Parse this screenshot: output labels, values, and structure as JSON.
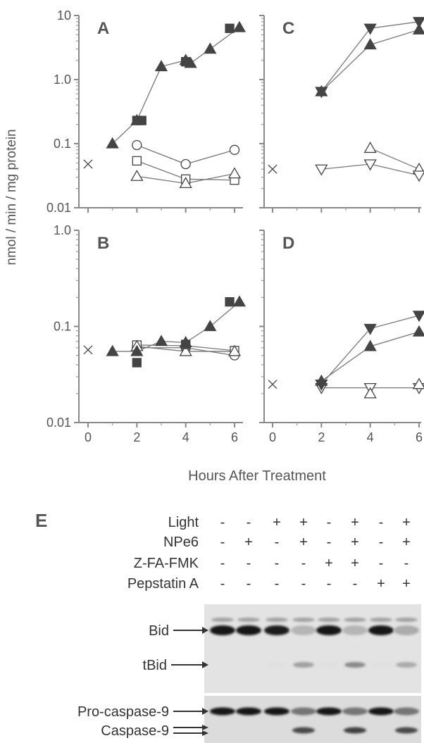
{
  "figure": {
    "y_axis_label": "nmol / min / mg protein",
    "x_axis_label": "Hours After Treatment",
    "x_ticks": [
      "0",
      "2",
      "4",
      "6"
    ],
    "top_y_ticks": [
      "10",
      "1.0",
      "0.1",
      "0.01"
    ],
    "bottom_y_ticks": [
      "1.0",
      "0.1",
      "0.01"
    ],
    "panel_e_label": "E"
  },
  "chart_data": [
    {
      "type": "scatter",
      "panel": "A",
      "yscale": "log",
      "xlim": [
        0,
        6.5
      ],
      "ylim": [
        0.01,
        10
      ],
      "series": [
        {
          "marker": "filled-triangle",
          "x": [
            1,
            2,
            3,
            4,
            4.2,
            5,
            6.2
          ],
          "y": [
            0.1,
            0.23,
            1.6,
            2.0,
            1.8,
            3.0,
            6.5
          ],
          "connected": true
        },
        {
          "marker": "filled-square",
          "x": [
            2,
            2.2,
            4,
            5.8
          ],
          "y": [
            0.23,
            0.23,
            1.9,
            6.3
          ],
          "connected": false
        },
        {
          "marker": "open-circle",
          "x": [
            2,
            4,
            6
          ],
          "y": [
            0.095,
            0.048,
            0.08
          ],
          "connected": true
        },
        {
          "marker": "open-square",
          "x": [
            2,
            4,
            6
          ],
          "y": [
            0.054,
            0.028,
            0.027
          ],
          "connected": true
        },
        {
          "marker": "open-triangle",
          "x": [
            2,
            4,
            6
          ],
          "y": [
            0.031,
            0.024,
            0.034
          ],
          "connected": true
        },
        {
          "marker": "x",
          "x": [
            0
          ],
          "y": [
            0.048
          ],
          "connected": false
        }
      ]
    },
    {
      "type": "scatter",
      "panel": "B",
      "yscale": "log",
      "xlim": [
        0,
        6.5
      ],
      "ylim": [
        0.01,
        1.0
      ],
      "series": [
        {
          "marker": "filled-triangle",
          "x": [
            1,
            2,
            3,
            4,
            5,
            6.2
          ],
          "y": [
            0.055,
            0.055,
            0.07,
            0.068,
            0.1,
            0.18
          ],
          "connected": true
        },
        {
          "marker": "filled-square",
          "x": [
            2,
            4,
            5.8
          ],
          "y": [
            0.042,
            0.065,
            0.18
          ],
          "connected": false
        },
        {
          "marker": "open-circle",
          "x": [
            2,
            4,
            6
          ],
          "y": [
            0.06,
            0.06,
            0.05
          ],
          "connected": true
        },
        {
          "marker": "open-square",
          "x": [
            2,
            4,
            6
          ],
          "y": [
            0.064,
            0.063,
            0.056
          ],
          "connected": true
        },
        {
          "marker": "open-triangle",
          "x": [
            2,
            4,
            6
          ],
          "y": [
            0.062,
            0.055,
            0.055
          ],
          "connected": true
        },
        {
          "marker": "x",
          "x": [
            0
          ],
          "y": [
            0.057
          ],
          "connected": false
        }
      ]
    },
    {
      "type": "scatter",
      "panel": "C",
      "yscale": "log",
      "xlim": [
        0,
        6.5
      ],
      "ylim": [
        0.01,
        10
      ],
      "series": [
        {
          "marker": "filled-inverted-triangle",
          "x": [
            2,
            4,
            6
          ],
          "y": [
            0.65,
            6.3,
            8.0
          ],
          "connected": true
        },
        {
          "marker": "filled-triangle",
          "x": [
            2,
            4,
            6
          ],
          "y": [
            0.65,
            3.5,
            6.0
          ],
          "connected": true
        },
        {
          "marker": "open-triangle",
          "x": [
            4,
            6
          ],
          "y": [
            0.085,
            0.04
          ],
          "connected": true
        },
        {
          "marker": "open-inverted-triangle",
          "x": [
            2,
            4,
            6
          ],
          "y": [
            0.04,
            0.048,
            0.032
          ],
          "connected": true
        },
        {
          "marker": "x",
          "x": [
            0
          ],
          "y": [
            0.04
          ],
          "connected": false
        }
      ]
    },
    {
      "type": "scatter",
      "panel": "D",
      "yscale": "log",
      "xlim": [
        0,
        6.5
      ],
      "ylim": [
        0.01,
        1.0
      ],
      "series": [
        {
          "marker": "filled-inverted-triangle",
          "x": [
            2,
            4,
            6
          ],
          "y": [
            0.025,
            0.095,
            0.13
          ],
          "connected": true
        },
        {
          "marker": "filled-triangle",
          "x": [
            2,
            4,
            6
          ],
          "y": [
            0.027,
            0.062,
            0.088
          ],
          "connected": true
        },
        {
          "marker": "open-inverted-triangle",
          "x": [
            2,
            4,
            6
          ],
          "y": [
            0.023,
            0.023,
            0.023
          ],
          "connected": true
        },
        {
          "marker": "open-triangle",
          "x": [
            4,
            6
          ],
          "y": [
            0.02,
            0.025
          ],
          "connected": false
        },
        {
          "marker": "x",
          "x": [
            0
          ],
          "y": [
            0.025
          ],
          "connected": false
        }
      ]
    }
  ],
  "blot": {
    "treatments": [
      {
        "label": "Light",
        "signs": [
          "-",
          "-",
          "+",
          "+",
          "-",
          "+",
          "-",
          "+"
        ]
      },
      {
        "label": "NPe6",
        "signs": [
          "-",
          "+",
          "-",
          "+",
          "-",
          "+",
          "-",
          "+"
        ]
      },
      {
        "label": "Z-FA-FMK",
        "signs": [
          "-",
          "-",
          "-",
          "-",
          "+",
          "+",
          "-",
          "-"
        ]
      },
      {
        "label": "Pepstatin A",
        "signs": [
          "-",
          "-",
          "-",
          "-",
          "-",
          "-",
          "+",
          "+"
        ]
      }
    ],
    "bands": [
      "Bid",
      "tBid",
      "Pro-caspase-9",
      "Caspase-9"
    ],
    "bid_intensity": [
      1.0,
      1.0,
      0.95,
      0.25,
      1.0,
      0.25,
      1.0,
      0.3
    ],
    "tbid_intensity": [
      0.0,
      0.0,
      0.05,
      0.35,
      0.05,
      0.45,
      0.05,
      0.3
    ],
    "procasp9_intensity": [
      1.0,
      1.0,
      1.0,
      0.55,
      1.0,
      0.55,
      1.0,
      0.55
    ],
    "casp9_intensity": [
      0.0,
      0.0,
      0.0,
      0.75,
      0.0,
      0.8,
      0.0,
      0.75
    ]
  }
}
